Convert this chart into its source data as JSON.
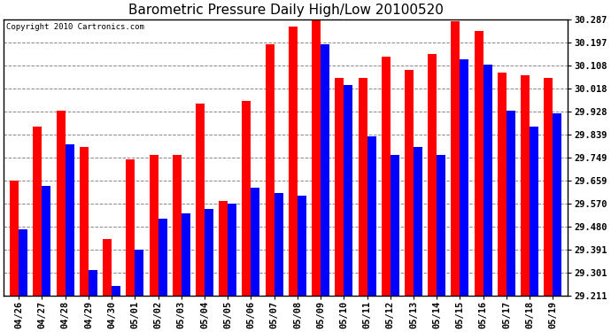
{
  "title": "Barometric Pressure Daily High/Low 20100520",
  "copyright": "Copyright 2010 Cartronics.com",
  "categories": [
    "04/26",
    "04/27",
    "04/28",
    "04/29",
    "04/30",
    "05/01",
    "05/02",
    "05/03",
    "05/04",
    "05/05",
    "05/06",
    "05/07",
    "05/08",
    "05/09",
    "05/10",
    "05/11",
    "05/12",
    "05/13",
    "05/14",
    "05/15",
    "05/16",
    "05/17",
    "05/18",
    "05/19"
  ],
  "highs": [
    29.66,
    29.87,
    29.93,
    29.79,
    29.43,
    29.74,
    29.76,
    29.76,
    29.96,
    29.58,
    29.97,
    30.19,
    30.26,
    30.29,
    30.06,
    30.06,
    30.14,
    30.09,
    30.15,
    30.28,
    30.24,
    30.08,
    30.07,
    30.06
  ],
  "lows": [
    29.47,
    29.64,
    29.8,
    29.31,
    29.25,
    29.39,
    29.51,
    29.53,
    29.55,
    29.57,
    29.63,
    29.61,
    29.6,
    30.19,
    30.03,
    29.83,
    29.76,
    29.79,
    29.76,
    30.13,
    30.11,
    29.93,
    29.87,
    29.92
  ],
  "high_color": "#ff0000",
  "low_color": "#0000ff",
  "background_color": "#ffffff",
  "grid_color": "#888888",
  "ymin": 29.211,
  "ymax": 30.287,
  "yticks": [
    29.211,
    29.301,
    29.391,
    29.48,
    29.57,
    29.659,
    29.749,
    29.839,
    29.928,
    30.018,
    30.108,
    30.197,
    30.287
  ],
  "bar_width": 0.38,
  "figwidth": 6.9,
  "figheight": 3.75,
  "dpi": 100
}
